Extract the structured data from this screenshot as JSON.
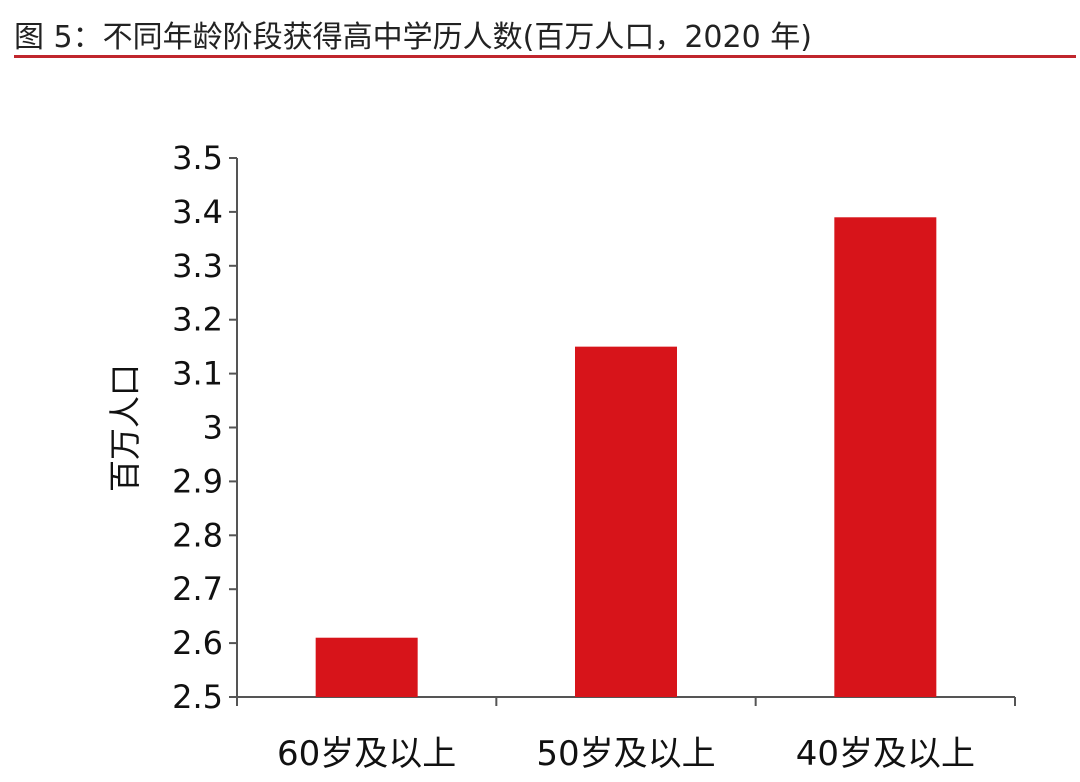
{
  "chart_data": {
    "type": "bar",
    "title": "图 5：不同年龄阶段获得高中学历人数(百万人口，2020 年)",
    "xlabel": "",
    "ylabel": "百万人口",
    "categories": [
      "60岁及以上",
      "50岁及以上",
      "40岁及以上"
    ],
    "values": [
      2.61,
      3.15,
      3.39
    ],
    "ylim": [
      2.5,
      3.5
    ],
    "yticks": [
      "2.5",
      "2.6",
      "2.7",
      "2.8",
      "2.9",
      "3",
      "3.1",
      "3.2",
      "3.3",
      "3.4",
      "3.5"
    ],
    "bar_color": "#d7141a",
    "accent_color": "#c0262d",
    "grid": false,
    "legend": "none"
  }
}
